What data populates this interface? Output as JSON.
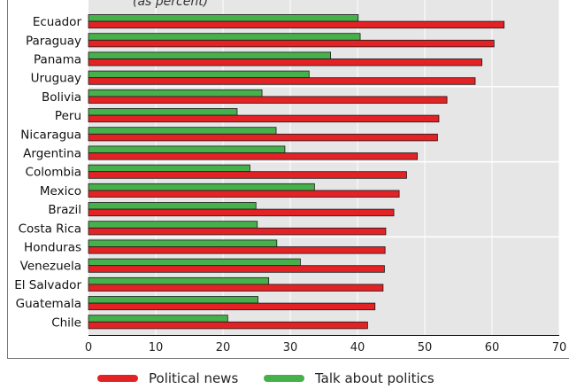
{
  "chart_data": {
    "type": "bar",
    "orientation": "horizontal",
    "title_fragment": "(as percent)",
    "categories": [
      "Ecuador",
      "Paraguay",
      "Panama",
      "Uruguay",
      "Bolivia",
      "Peru",
      "Nicaragua",
      "Argentina",
      "Colombia",
      "Mexico",
      "Brazil",
      "Costa Rica",
      "Honduras",
      "Venezuela",
      "El Salvador",
      "Guatemala",
      "Chile"
    ],
    "series": [
      {
        "name": "Political news",
        "color": "#e32226",
        "values": [
          61.8,
          60.3,
          58.5,
          57.5,
          53.3,
          52.1,
          51.9,
          48.9,
          47.3,
          46.2,
          45.4,
          44.2,
          44.1,
          44.0,
          43.8,
          42.6,
          41.5
        ]
      },
      {
        "name": "Talk about politics",
        "color": "#46b04a",
        "values": [
          40.1,
          40.4,
          36.0,
          32.8,
          25.8,
          22.1,
          27.9,
          29.2,
          24.0,
          33.6,
          24.9,
          25.1,
          28.0,
          31.5,
          26.8,
          25.2,
          20.7
        ]
      }
    ],
    "xlim": [
      0,
      70
    ],
    "xticks": [
      "0",
      "10",
      "20",
      "30",
      "40",
      "50",
      "60",
      "70"
    ],
    "grid": true,
    "legend_position": "bottom"
  }
}
